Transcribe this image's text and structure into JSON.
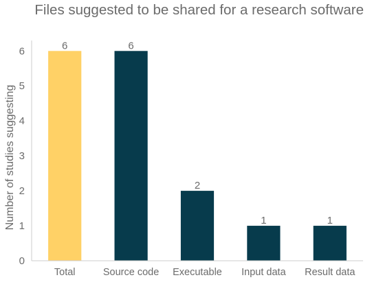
{
  "chart_data": {
    "type": "bar",
    "title": "Files suggested to be shared for a research software",
    "xlabel": "",
    "ylabel": "Number of studies suggesting",
    "categories": [
      "Total",
      "Source code",
      "Executable",
      "Input data",
      "Result data"
    ],
    "values": [
      6,
      6,
      2,
      1,
      1
    ],
    "ylim": [
      0,
      6.3
    ],
    "yticks": [
      0,
      1,
      2,
      3,
      4,
      5,
      6
    ],
    "grid": false,
    "legend": "none",
    "bar_colors": [
      "#ffd166",
      "#073b4c",
      "#073b4c",
      "#073b4c",
      "#073b4c"
    ],
    "data_labels": true
  },
  "colors": {
    "text": "#6b6b6b",
    "axis": "#cccccc",
    "highlight": "#ffd166",
    "primary": "#073b4c"
  }
}
